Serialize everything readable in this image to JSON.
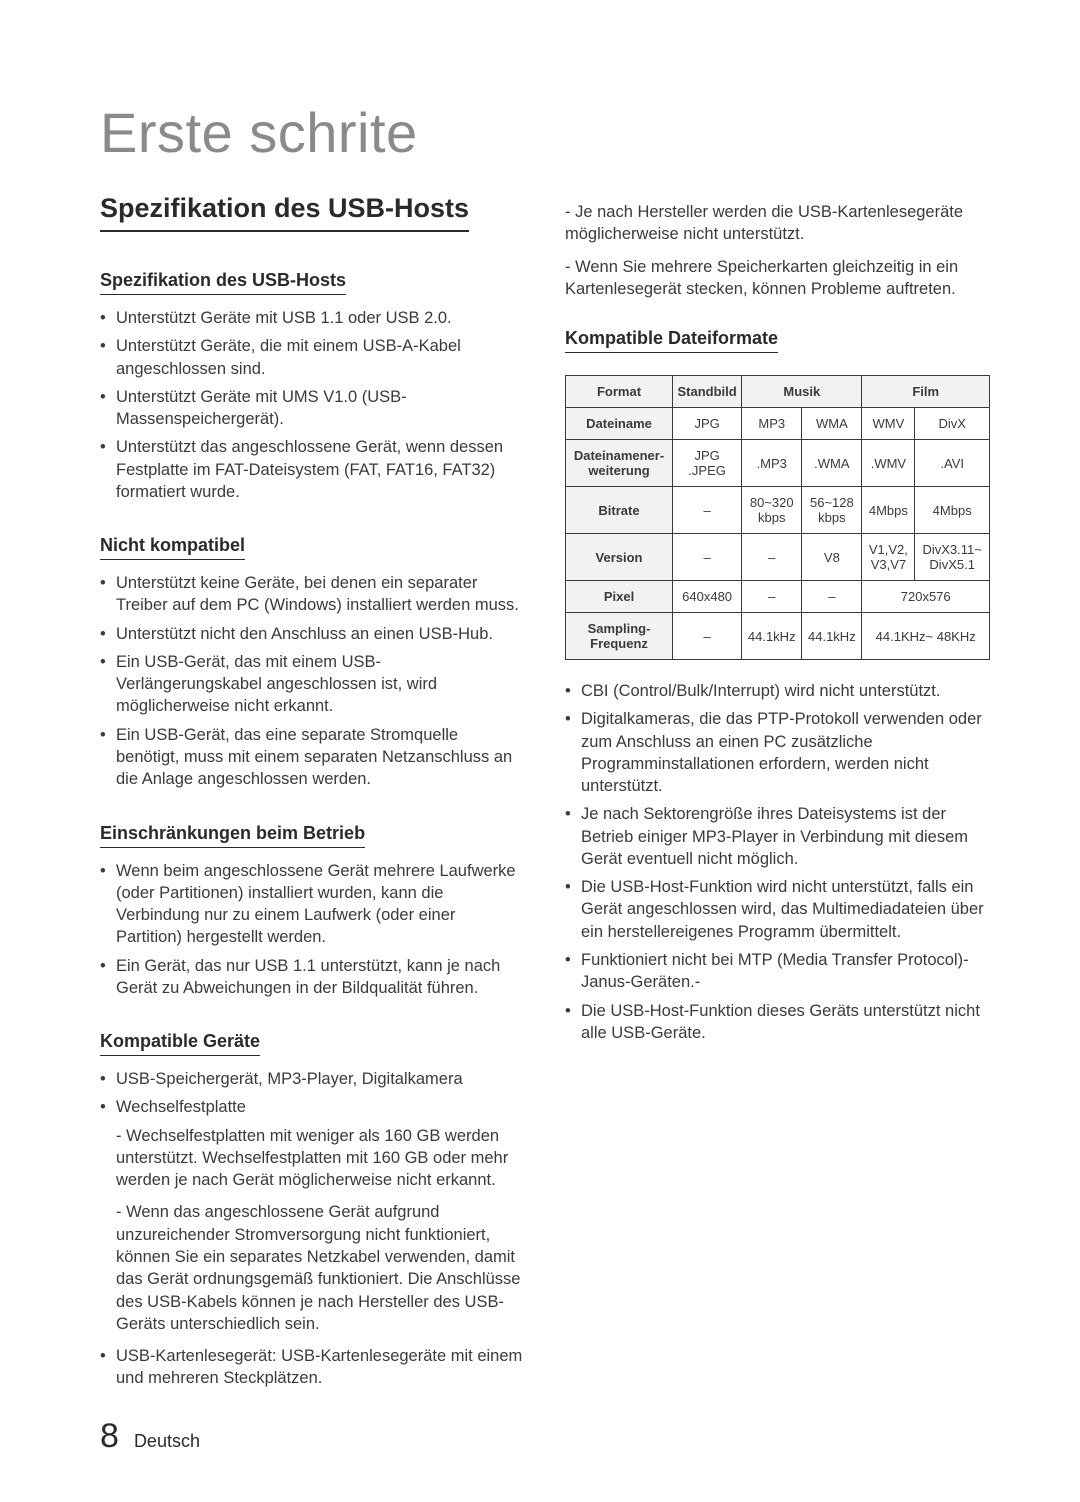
{
  "page_title": "Erste schrite",
  "section_title": "Spezifikation des USB-Hosts",
  "footer": {
    "page_number": "8",
    "lang": "Deutsch"
  },
  "left": {
    "spec_heading": "Spezifikation des USB-Hosts",
    "spec_bullets": [
      "Unterstützt Geräte mit USB 1.1 oder USB 2.0.",
      "Unterstützt Geräte, die mit einem USB-A-Kabel angeschlossen sind.",
      "Unterstützt Geräte mit UMS V1.0 (USB-Massenspeichergerät).",
      "Unterstützt das angeschlossene Gerät, wenn dessen Festplatte im FAT-Dateisystem (FAT, FAT16, FAT32) formatiert wurde."
    ],
    "incompat_heading": "Nicht kompatibel",
    "incompat_bullets": [
      "Unterstützt keine Geräte, bei denen ein separater Treiber auf dem PC (Windows) installiert werden muss.",
      "Unterstützt nicht den Anschluss an einen USB-Hub.",
      "Ein USB-Gerät, das mit einem USB-Verlängerungskabel angeschlossen ist, wird möglicherweise nicht erkannt.",
      "Ein USB-Gerät, das eine separate Stromquelle benötigt, muss mit einem separaten Netzanschluss an die Anlage angeschlossen werden."
    ],
    "restrict_heading": "Einschränkungen beim Betrieb",
    "restrict_bullets": [
      "Wenn beim angeschlossene Gerät mehrere Laufwerke (oder Partitionen) installiert wurden, kann die Verbindung nur zu einem Laufwerk (oder einer Partition) hergestellt werden.",
      "Ein Gerät, das nur USB 1.1 unterstützt, kann je nach Gerät zu Abweichungen in der Bildqualität führen."
    ],
    "devices_heading": "Kompatible Geräte",
    "devices_bullets": [
      "USB-Speichergerät, MP3-Player, Digitalkamera",
      "Wechselfestplatte"
    ],
    "devices_sub_paras": [
      "- Wechselfestplatten mit weniger als 160 GB werden unterstützt. Wechselfestplatten mit 160 GB oder mehr werden je nach Gerät möglicherweise nicht erkannt.",
      "- Wenn das angeschlossene Gerät aufgrund unzureichender Stromversorgung nicht funktioniert, können Sie ein separates Netzkabel verwenden, damit das Gerät ordnungsgemäß funktioniert. Die Anschlüsse des USB-Kabels können je nach Hersteller des USB-Geräts unterschiedlich sein."
    ],
    "devices_bullets2": [
      "USB-Kartenlesegerät: USB-Kartenlesegeräte mit einem und mehreren Steckplätzen."
    ]
  },
  "right": {
    "top_paras": [
      "- Je nach Hersteller werden die USB-Kartenlesegeräte möglicherweise nicht unterstützt.",
      "- Wenn Sie mehrere Speicherkarten gleichzeitig in ein Kartenlesegerät stecken, können Probleme auftreten."
    ],
    "formats_heading": "Kompatible Dateiformate",
    "table": {
      "header": [
        "Format",
        "Standbild",
        "Musik",
        "Film"
      ],
      "header_spans": [
        1,
        1,
        2,
        2
      ],
      "rows": [
        {
          "head": "Dateiname",
          "cells": [
            "JPG",
            "MP3",
            "WMA",
            "WMV",
            "DivX"
          ]
        },
        {
          "head": "Dateinamener-weiterung",
          "cells": [
            "JPG .JPEG",
            ".MP3",
            ".WMA",
            ".WMV",
            ".AVI"
          ]
        },
        {
          "head": "Bitrate",
          "cells": [
            "–",
            "80~320 kbps",
            "56~128 kbps",
            "4Mbps",
            "4Mbps"
          ]
        },
        {
          "head": "Version",
          "cells": [
            "–",
            "–",
            "V8",
            "V1,V2, V3,V7",
            "DivX3.11~ DivX5.1"
          ]
        },
        {
          "head": "Pixel",
          "cells": [
            "640x480",
            "–",
            "–",
            "720x576"
          ],
          "last_span": 2
        },
        {
          "head": "Sampling-Frequenz",
          "cells": [
            "–",
            "44.1kHz",
            "44.1kHz",
            "44.1KHz~ 48KHz"
          ],
          "last_span": 2
        }
      ]
    },
    "bottom_bullets": [
      "CBI (Control/Bulk/Interrupt) wird nicht unterstützt.",
      "Digitalkameras, die das PTP-Protokoll verwenden oder zum Anschluss an einen PC zusätzliche Programminstallationen erfordern, werden nicht unterstützt.",
      "Je nach Sektorengröße ihres Dateisystems ist der Betrieb einiger MP3-Player in Verbindung mit diesem Gerät eventuell nicht möglich.",
      "Die USB-Host-Funktion wird nicht unterstützt, falls ein Gerät angeschlossen wird, das Multimediadateien über ein herstellereigenes Programm übermittelt.",
      "Funktioniert nicht bei MTP (Media Transfer Protocol)-Janus-Geräten.-",
      " Die USB-Host-Funktion dieses Geräts unterstützt nicht alle USB-Geräte."
    ]
  }
}
